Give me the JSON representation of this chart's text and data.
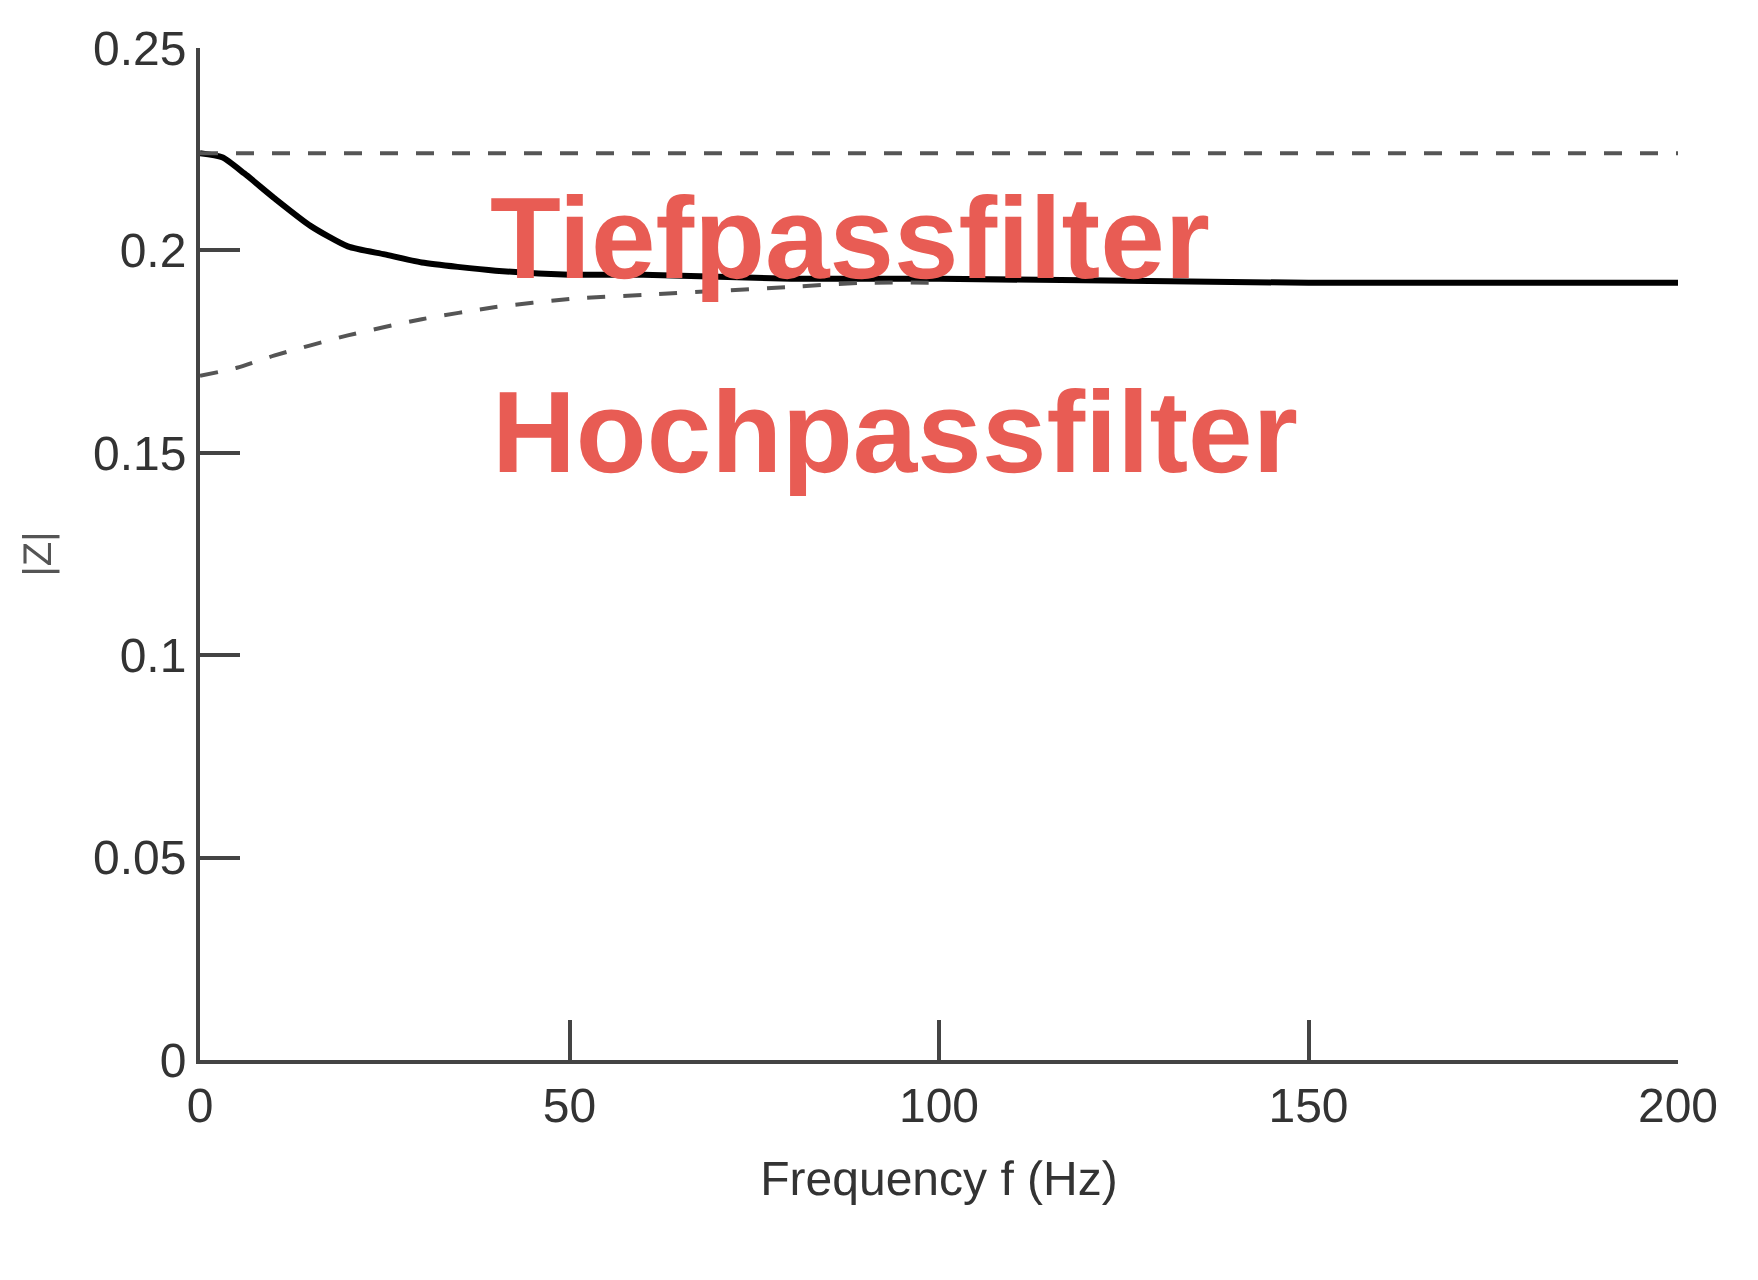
{
  "chart_data": {
    "type": "line",
    "xlabel": "Frequency f (Hz)",
    "ylabel": "|Z|",
    "xlim": [
      0,
      200
    ],
    "xticks": [
      0,
      50,
      100,
      150,
      200
    ],
    "ylim": [
      0,
      0.25
    ],
    "yticks": [
      0,
      0.05,
      0.1,
      0.15,
      0.2,
      0.25
    ],
    "marker": "none",
    "series": [
      {
        "color": "#000000",
        "line_style": "solid",
        "x": [
          0,
          3,
          6,
          10,
          15,
          20,
          25,
          30,
          40,
          50,
          60,
          80,
          100,
          150,
          200
        ],
        "values": [
          0.224,
          0.223,
          0.219,
          0.213,
          0.206,
          0.201,
          0.199,
          0.197,
          0.195,
          0.194,
          0.194,
          0.193,
          0.193,
          0.192,
          0.192
        ]
      },
      {
        "color": "#555555",
        "line_style": "dashed",
        "x": [
          0,
          5,
          10,
          20,
          30,
          40,
          50,
          60,
          70,
          80,
          90,
          100
        ],
        "values": [
          0.169,
          0.171,
          0.174,
          0.179,
          0.183,
          0.186,
          0.188,
          0.189,
          0.19,
          0.191,
          0.192,
          0.192
        ]
      }
    ],
    "ref_lines": [
      {
        "axis": "y",
        "value": 0.224,
        "color": "#555555",
        "line_style": "dashed"
      }
    ],
    "annotations": [
      "Tiefpassfilter",
      "Hochpassfilter"
    ]
  }
}
